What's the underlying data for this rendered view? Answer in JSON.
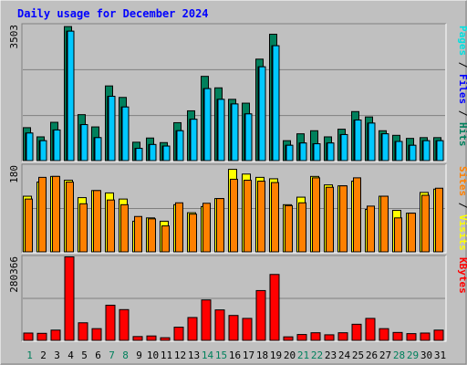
{
  "chart_data": {
    "type": "bar",
    "title": "Daily usage for December 2024",
    "categories": [
      "1",
      "2",
      "3",
      "4",
      "5",
      "6",
      "7",
      "8",
      "9",
      "10",
      "11",
      "12",
      "13",
      "14",
      "15",
      "16",
      "17",
      "18",
      "19",
      "20",
      "21",
      "22",
      "23",
      "24",
      "25",
      "26",
      "27",
      "28",
      "29",
      "30",
      "31"
    ],
    "weekend_categories": [
      "1",
      "7",
      "8",
      "14",
      "15",
      "21",
      "22",
      "28",
      "29"
    ],
    "panels": [
      {
        "id": "hits-files-pages",
        "y_max_label": "3503",
        "ylim": [
          0,
          3503
        ],
        "legend": [
          {
            "text": "Pages",
            "color": "#00e0e0"
          },
          {
            "text": "Files",
            "color": "#0000ff"
          },
          {
            "text": "Hits",
            "color": "#00805c"
          }
        ],
        "series": [
          {
            "name": "Hits",
            "color": "#00805c",
            "values": [
              860,
              620,
              1000,
              3500,
              1200,
              880,
              1950,
              1650,
              480,
              590,
              470,
              990,
              1300,
              2200,
              1900,
              1600,
              1500,
              2650,
              3300,
              520,
              700,
              780,
              620,
              820,
              1280,
              1140,
              780,
              660,
              580,
              600,
              600
            ]
          },
          {
            "name": "Files",
            "color": "#0000ff",
            "values": [
              720,
              520,
              800,
              3380,
              940,
              600,
              1680,
              1400,
              320,
              420,
              380,
              780,
              1080,
              1880,
              1600,
              1480,
              1220,
              2450,
              3000,
              400,
              460,
              440,
              460,
              680,
              1060,
              980,
              700,
              500,
              400,
              520,
              520
            ]
          },
          {
            "name": "Pages",
            "color": "#00c8ff",
            "values": [
              720,
              520,
              800,
              3380,
              940,
              600,
              1680,
              1400,
              320,
              420,
              380,
              780,
              1080,
              1880,
              1600,
              1480,
              1220,
              2450,
              3000,
              400,
              460,
              440,
              460,
              680,
              1060,
              980,
              700,
              500,
              400,
              520,
              520
            ]
          }
        ]
      },
      {
        "id": "visits-sites",
        "y_max_label": "180",
        "ylim": [
          0,
          180
        ],
        "legend": [
          {
            "text": "Sites",
            "color": "#ff8000"
          },
          {
            "text": "Visits",
            "color": "#ffff00"
          }
        ],
        "series": [
          {
            "name": "Visits",
            "color": "#ffff00",
            "values": [
              118,
              148,
              160,
              152,
              115,
              130,
              125,
              112,
              65,
              72,
              65,
              100,
              83,
              96,
              113,
              175,
              165,
              158,
              155,
              100,
              116,
              160,
              142,
              140,
              150,
              90,
              118,
              88,
              82,
              126,
              133
            ]
          },
          {
            "name": "Sites",
            "color": "#ff8000",
            "values": [
              112,
              158,
              160,
              148,
              102,
              130,
              110,
              100,
              75,
              70,
              55,
              104,
              80,
              103,
              113,
              154,
              152,
              150,
              147,
              98,
              104,
              157,
              137,
              140,
              157,
              97,
              118,
              72,
              82,
              120,
              135
            ]
          }
        ]
      },
      {
        "id": "kbytes",
        "y_max_label": "280366",
        "ylim": [
          0,
          280366
        ],
        "legend": [
          {
            "text": "KBytes",
            "color": "#ff0000"
          }
        ],
        "series": [
          {
            "name": "KBytes",
            "color": "#ff0000",
            "values": [
              25000,
              24000,
              35000,
              285000,
              60000,
              40000,
              120000,
              105000,
              13000,
              15000,
              9000,
              45000,
              78000,
              138000,
              104000,
              85000,
              75000,
              170000,
              225000,
              12000,
              20000,
              26000,
              19000,
              26000,
              55000,
              75000,
              40000,
              27000,
              23000,
              25000,
              35000
            ]
          }
        ]
      }
    ]
  }
}
